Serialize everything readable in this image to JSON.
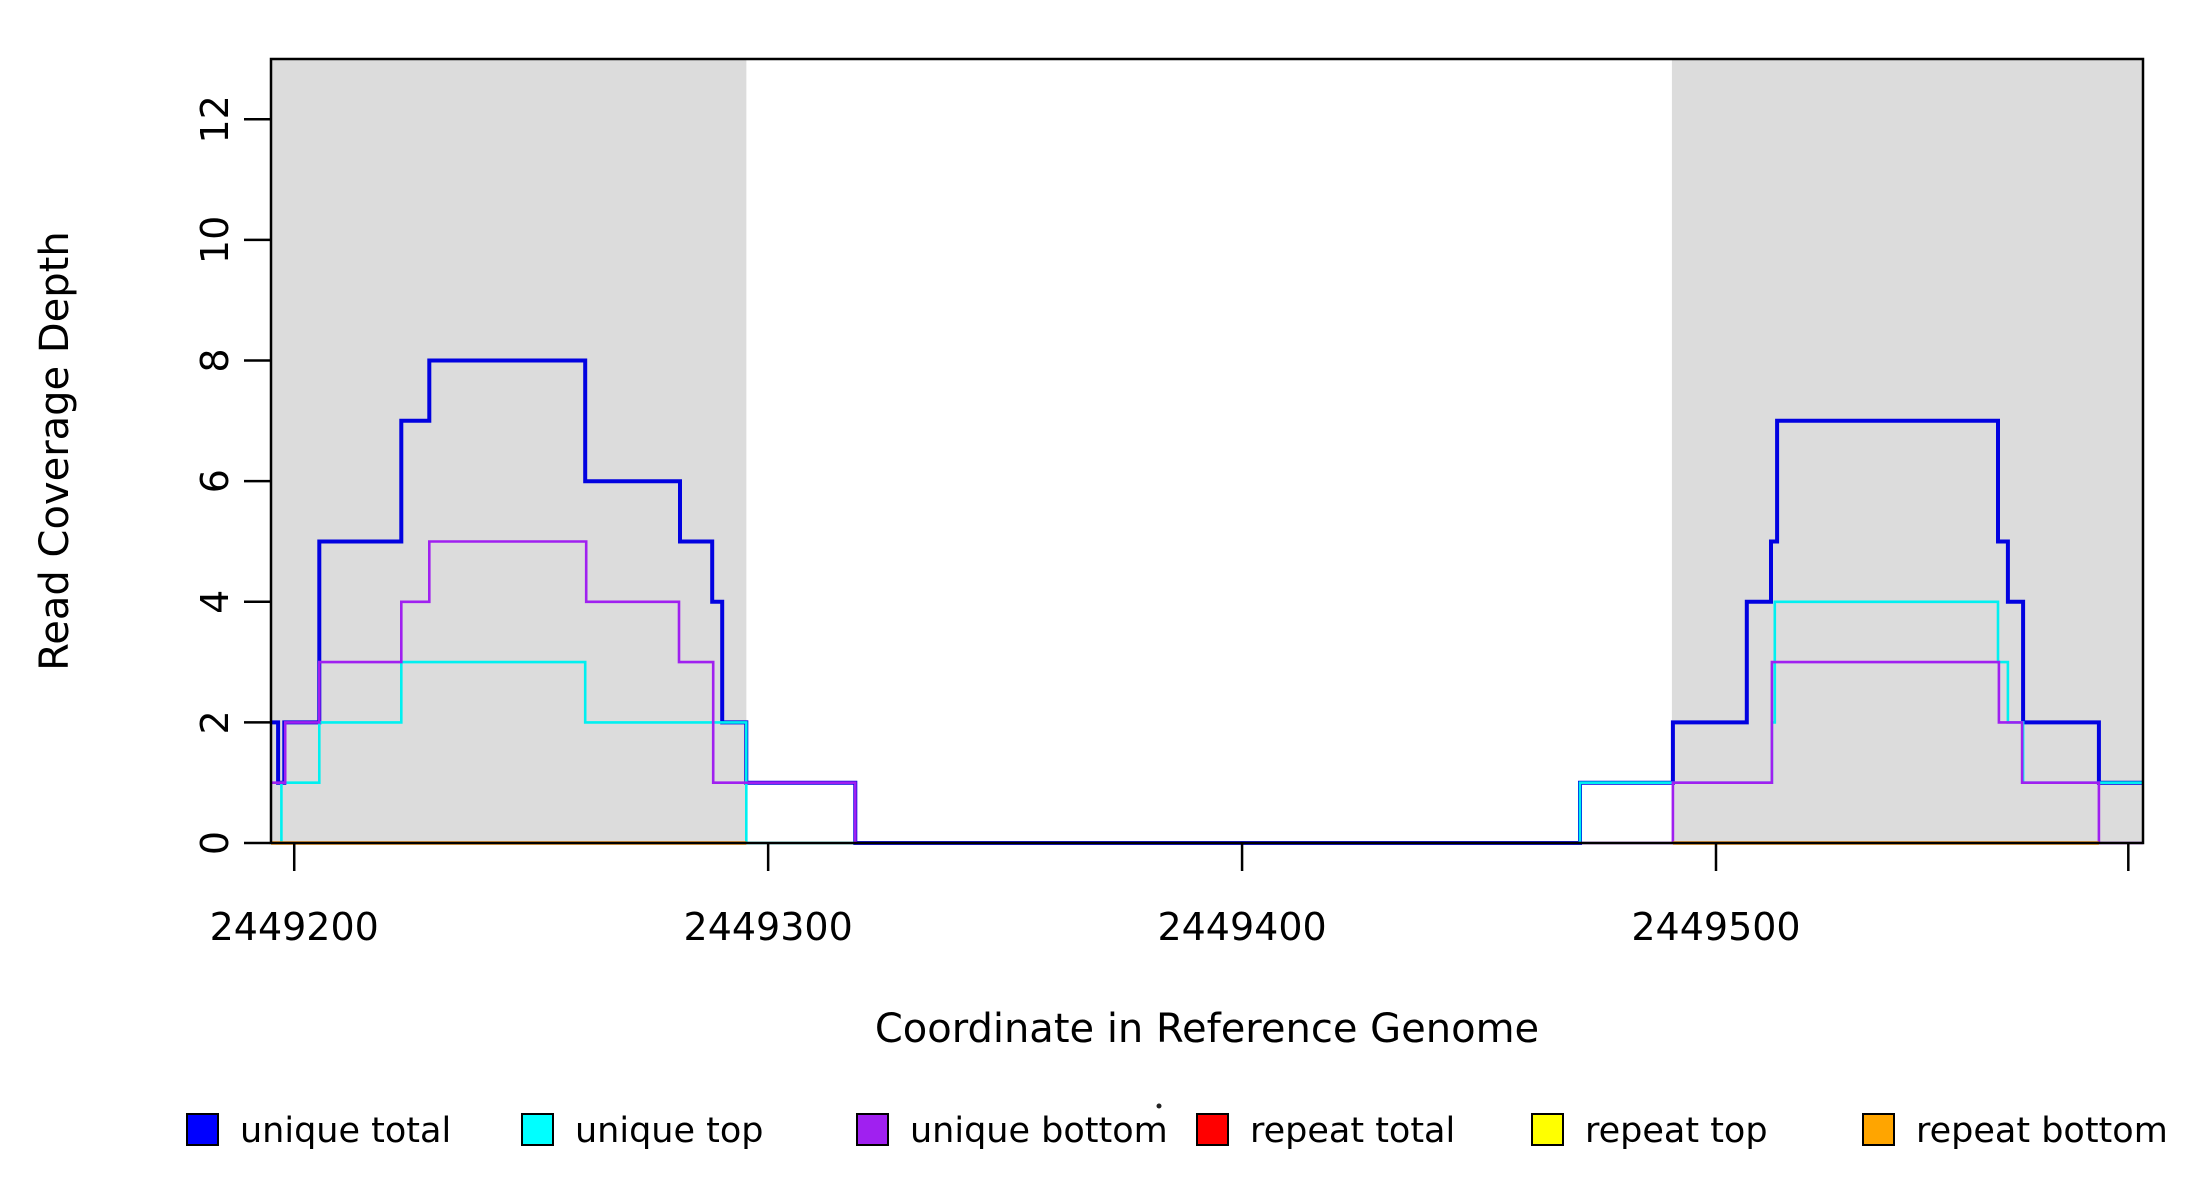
{
  "figure": {
    "x_title": "Coordinate in Reference Genome",
    "y_title": "Read Coverage Depth"
  },
  "chart_data": {
    "type": "step-line",
    "title": "",
    "xlabel": "Coordinate in Reference Genome",
    "ylabel": "Read Coverage Depth",
    "xlim": [
      2449195.1,
      2449590.1
    ],
    "ylim": [
      0,
      13
    ],
    "grid": false,
    "legend_position": "bottom",
    "x_ticks": [
      {
        "value": 2449200,
        "label": "2449200"
      },
      {
        "value": 2449300,
        "label": "2449300"
      },
      {
        "value": 2449400,
        "label": "2449400"
      },
      {
        "value": 2449500,
        "label": "2449500"
      },
      {
        "value": 2449587,
        "label": ""
      }
    ],
    "y_ticks": [
      0,
      2,
      4,
      6,
      8,
      10,
      12
    ],
    "band_color": "#DCDCDC",
    "repeat_region_bands": [
      {
        "x0": 2449195.1,
        "x1": 2449295.4
      },
      {
        "x0": 2449490.7,
        "x1": 2449590.1
      }
    ],
    "series": [
      {
        "name": "unique total",
        "legend_color": "#0000FF",
        "line_color": "#0202E0",
        "width": 4,
        "segments": [
          {
            "points": [
              [
                2449195.1,
                2
              ],
              [
                2449196.6,
                1
              ],
              [
                2449197.9,
                2
              ],
              [
                2449205.3,
                5
              ],
              [
                2449222.6,
                7
              ],
              [
                2449228.5,
                8
              ],
              [
                2449261.4,
                6
              ],
              [
                2449281.4,
                5
              ],
              [
                2449288.2,
                4
              ],
              [
                2449290.3,
                2
              ],
              [
                2449295.4,
                1
              ],
              [
                2449318.4,
                0
              ],
              [
                2449471.3,
                1
              ],
              [
                2449490.9,
                2
              ],
              [
                2449506.5,
                4
              ],
              [
                2449511.6,
                5
              ],
              [
                2449512.9,
                7
              ],
              [
                2449559.5,
                5
              ],
              [
                2449561.6,
                4
              ],
              [
                2449564.8,
                2
              ],
              [
                2449580.8,
                1
              ]
            ],
            "xend": 2449590.1
          }
        ]
      },
      {
        "name": "unique top",
        "legend_color": "#00FFFF",
        "line_color": "#00F0F0",
        "width": 2.6,
        "segments": [
          {
            "points": [
              [
                2449195.1,
                0
              ],
              [
                2449197.3,
                1
              ],
              [
                2449205.3,
                2
              ],
              [
                2449222.6,
                3
              ],
              [
                2449261.4,
                2
              ],
              [
                2449295.4,
                0
              ],
              [
                2449471.3,
                1
              ],
              [
                2449511.8,
                2
              ],
              [
                2449512.4,
                4
              ],
              [
                2449559.5,
                3
              ],
              [
                2449561.6,
                2
              ],
              [
                2449564.8,
                1
              ]
            ],
            "xend": 2449590.1
          }
        ]
      },
      {
        "name": "unique bottom",
        "legend_color": "#A020F0",
        "line_color": "#A020F0",
        "width": 2.6,
        "segments": [
          {
            "points": [
              [
                2449195.1,
                1
              ],
              [
                2449198.1,
                2
              ],
              [
                2449205.3,
                3
              ],
              [
                2449222.6,
                4
              ],
              [
                2449228.5,
                5
              ],
              [
                2449261.6,
                4
              ],
              [
                2449281.2,
                3
              ],
              [
                2449288.4,
                1
              ],
              [
                2449318.4,
                0
              ],
              [
                2449490.9,
                1
              ],
              [
                2449511.8,
                3
              ],
              [
                2449559.7,
                2
              ],
              [
                2449564.6,
                1
              ],
              [
                2449580.8,
                0
              ]
            ],
            "xend": 2449590.1
          }
        ]
      },
      {
        "name": "repeat total",
        "legend_color": "#FF0000",
        "line_color": "#FF8080",
        "width": 2,
        "segments": [
          {
            "points": [
              [
                2449195.1,
                0
              ]
            ],
            "xend": 2449295.4
          },
          {
            "points": [
              [
                2449472.0,
                0
              ]
            ],
            "xend": 2449580.8
          }
        ]
      },
      {
        "name": "repeat top",
        "legend_color": "#FFFF00",
        "line_color": "#FFFF00",
        "width": 2,
        "segments": [
          {
            "points": [
              [
                2449195.1,
                0
              ]
            ],
            "xend": 2449295.4
          },
          {
            "points": [
              [
                2449490.9,
                0
              ]
            ],
            "xend": 2449580.8
          }
        ]
      },
      {
        "name": "repeat bottom",
        "legend_color": "#FFA500",
        "line_color": "#FF9000",
        "width": 3.6,
        "segments": [
          {
            "points": [
              [
                2449195.1,
                0
              ]
            ],
            "xend": 2449295.4
          },
          {
            "points": [
              [
                2449490.9,
                0
              ]
            ],
            "xend": 2449580.8
          }
        ]
      }
    ]
  },
  "legend": {
    "items": [
      {
        "label": "unique total",
        "color": "#0000FF"
      },
      {
        "label": "unique top",
        "color": "#00FFFF"
      },
      {
        "label": "unique bottom",
        "color": "#A020F0"
      },
      {
        "label": "repeat total",
        "color": "#FF0000"
      },
      {
        "label": "repeat top",
        "color": "#FFFF00"
      },
      {
        "label": "repeat bottom",
        "color": "#FFA500"
      }
    ]
  }
}
